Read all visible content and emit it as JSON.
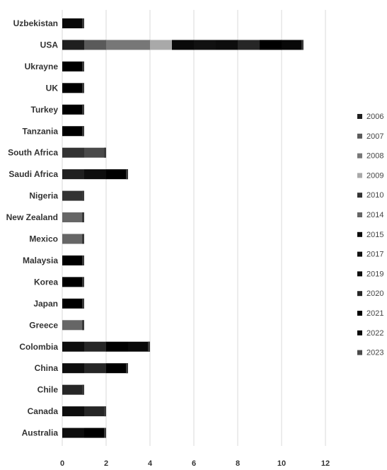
{
  "chart_data": {
    "type": "bar",
    "orientation": "horizontal",
    "stacked": true,
    "grid": true,
    "legend_position": "right",
    "xlim": [
      0,
      12
    ],
    "x_ticks": [
      "0",
      "2",
      "4",
      "6",
      "8",
      "10",
      "12"
    ],
    "categories": [
      "Uzbekistan",
      "USA",
      "Ukrayne",
      "UK",
      "Turkey",
      "Tanzania",
      "South Africa",
      "Saudi Africa",
      "Nigeria",
      "New Zealand",
      "Mexico",
      "Malaysia",
      "Korea",
      "Japan",
      "Greece",
      "Colombia",
      "China",
      "Chile",
      "Canada",
      "Australia"
    ],
    "series": [
      {
        "name": "2006",
        "color": "#1f1f1f",
        "values": [
          0,
          1,
          0,
          0,
          0,
          0,
          0,
          1,
          0,
          0,
          0,
          0,
          0,
          0,
          0,
          0,
          0,
          0,
          0,
          0
        ]
      },
      {
        "name": "2007",
        "color": "#5a5a5a",
        "values": [
          0,
          1,
          0,
          0,
          0,
          0,
          0,
          0,
          0,
          0,
          0,
          0,
          0,
          0,
          0,
          0,
          0,
          0,
          0,
          0
        ]
      },
      {
        "name": "2008",
        "color": "#777777",
        "values": [
          0,
          2,
          0,
          0,
          0,
          0,
          0,
          0,
          0,
          0,
          0,
          0,
          0,
          0,
          0,
          0,
          0,
          0,
          0,
          0
        ]
      },
      {
        "name": "2009",
        "color": "#a9a9a9",
        "values": [
          0,
          1,
          0,
          0,
          0,
          0,
          0,
          0,
          0,
          0,
          0,
          0,
          0,
          0,
          0,
          0,
          0,
          0,
          0,
          0
        ]
      },
      {
        "name": "2010",
        "color": "#333333",
        "values": [
          0,
          0,
          0,
          0,
          0,
          0,
          1,
          0,
          1,
          0,
          0,
          0,
          0,
          0,
          0,
          0,
          0,
          0,
          0,
          0
        ]
      },
      {
        "name": "2014",
        "color": "#666666",
        "values": [
          0,
          0,
          0,
          0,
          0,
          0,
          0,
          0,
          0,
          1,
          1,
          0,
          0,
          0,
          1,
          0,
          0,
          0,
          0,
          0
        ]
      },
      {
        "name": "2015",
        "color": "#0a0a0a",
        "values": [
          0,
          1,
          0,
          0,
          0,
          0,
          0,
          0,
          0,
          0,
          0,
          0,
          0,
          0,
          0,
          0,
          0,
          0,
          0,
          0
        ]
      },
      {
        "name": "2017",
        "color": "#111111",
        "values": [
          0,
          1,
          0,
          0,
          0,
          0,
          0,
          0,
          0,
          0,
          0,
          0,
          0,
          0,
          0,
          0,
          0,
          0,
          0,
          0
        ]
      },
      {
        "name": "2019",
        "color": "#0d0d0d",
        "values": [
          0,
          1,
          0,
          0,
          0,
          0,
          0,
          1,
          0,
          0,
          0,
          0,
          0,
          0,
          0,
          1,
          1,
          0,
          1,
          1
        ]
      },
      {
        "name": "2020",
        "color": "#262626",
        "values": [
          0,
          1,
          0,
          0,
          0,
          0,
          0,
          0,
          0,
          0,
          0,
          0,
          0,
          0,
          0,
          1,
          1,
          1,
          1,
          0
        ]
      },
      {
        "name": "2021",
        "color": "#000000",
        "values": [
          0,
          1,
          1,
          1,
          1,
          1,
          0,
          1,
          0,
          0,
          0,
          1,
          1,
          1,
          0,
          1,
          1,
          0,
          0,
          1
        ]
      },
      {
        "name": "2022",
        "color": "#080808",
        "values": [
          1,
          1,
          0,
          0,
          0,
          0,
          0,
          0,
          0,
          0,
          0,
          0,
          0,
          0,
          0,
          1,
          0,
          0,
          0,
          0
        ]
      },
      {
        "name": "2023",
        "color": "#4a4a4a",
        "values": [
          0,
          0,
          0,
          0,
          0,
          0,
          1,
          0,
          0,
          0,
          0,
          0,
          0,
          0,
          0,
          0,
          0,
          0,
          0,
          0
        ]
      }
    ]
  }
}
